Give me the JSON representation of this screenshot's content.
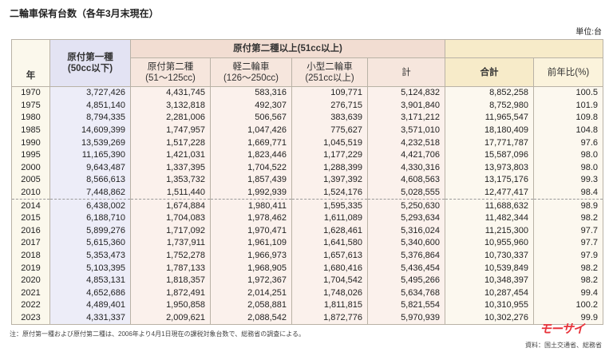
{
  "title": "二輪車保有台数（各年3月末現在）",
  "unit": "単位:台",
  "headers": {
    "year": "年",
    "moped1": "原付第一種",
    "moped1_sub": "(50cc以下)",
    "group": "原付第二種以上(51cc以上)",
    "moped2": "原付第二種",
    "moped2_sub": "(51～125cc)",
    "light": "軽二輪車",
    "light_sub": "(126～250cc)",
    "small": "小型二輪車",
    "small_sub": "(251cc以上)",
    "subtotal": "計",
    "total": "合計",
    "ratio": "前年比(%)"
  },
  "rows": [
    [
      "1970",
      "3,727,426",
      "4,431,745",
      "583,316",
      "109,771",
      "5,124,832",
      "8,852,258",
      "100.5"
    ],
    [
      "1975",
      "4,851,140",
      "3,132,818",
      "492,307",
      "276,715",
      "3,901,840",
      "8,752,980",
      "101.9"
    ],
    [
      "1980",
      "8,794,335",
      "2,281,006",
      "506,567",
      "383,639",
      "3,171,212",
      "11,965,547",
      "109.8"
    ],
    [
      "1985",
      "14,609,399",
      "1,747,957",
      "1,047,426",
      "775,627",
      "3,571,010",
      "18,180,409",
      "104.8"
    ],
    [
      "1990",
      "13,539,269",
      "1,517,228",
      "1,669,771",
      "1,045,519",
      "4,232,518",
      "17,771,787",
      "97.6"
    ],
    [
      "1995",
      "11,165,390",
      "1,421,031",
      "1,823,446",
      "1,177,229",
      "4,421,706",
      "15,587,096",
      "98.0"
    ],
    [
      "2000",
      "9,643,487",
      "1,337,395",
      "1,704,522",
      "1,288,399",
      "4,330,316",
      "13,973,803",
      "98.0"
    ],
    [
      "2005",
      "8,566,613",
      "1,353,732",
      "1,857,439",
      "1,397,392",
      "4,608,563",
      "13,175,176",
      "99.3"
    ],
    [
      "2010",
      "7,448,862",
      "1,511,440",
      "1,992,939",
      "1,524,176",
      "5,028,555",
      "12,477,417",
      "98.4"
    ],
    [
      "2014",
      "6,438,002",
      "1,674,884",
      "1,980,411",
      "1,595,335",
      "5,250,630",
      "11,688,632",
      "98.9"
    ],
    [
      "2015",
      "6,188,710",
      "1,704,083",
      "1,978,462",
      "1,611,089",
      "5,293,634",
      "11,482,344",
      "98.2"
    ],
    [
      "2016",
      "5,899,276",
      "1,717,092",
      "1,970,471",
      "1,628,461",
      "5,316,024",
      "11,215,300",
      "97.7"
    ],
    [
      "2017",
      "5,615,360",
      "1,737,911",
      "1,961,109",
      "1,641,580",
      "5,340,600",
      "10,955,960",
      "97.7"
    ],
    [
      "2018",
      "5,353,473",
      "1,752,278",
      "1,966,973",
      "1,657,613",
      "5,376,864",
      "10,730,337",
      "97.9"
    ],
    [
      "2019",
      "5,103,395",
      "1,787,133",
      "1,968,905",
      "1,680,416",
      "5,436,454",
      "10,539,849",
      "98.2"
    ],
    [
      "2020",
      "4,853,131",
      "1,818,357",
      "1,972,367",
      "1,704,542",
      "5,495,266",
      "10,348,397",
      "98.2"
    ],
    [
      "2021",
      "4,652,686",
      "1,872,491",
      "2,014,251",
      "1,748,026",
      "5,634,768",
      "10,287,454",
      "99.4"
    ],
    [
      "2022",
      "4,489,401",
      "1,950,858",
      "2,058,881",
      "1,811,815",
      "5,821,554",
      "10,310,955",
      "100.2"
    ],
    [
      "2023",
      "4,331,337",
      "2,009,621",
      "2,088,542",
      "1,872,776",
      "5,970,939",
      "10,302,276",
      "99.9"
    ]
  ],
  "note": "注：原付第一種および原付第二種は、2006年より4月1日現在の課税対象台数で、総務省の調査による。",
  "source": "資料：国土交通省、総務省",
  "logo": "モーサイ"
}
